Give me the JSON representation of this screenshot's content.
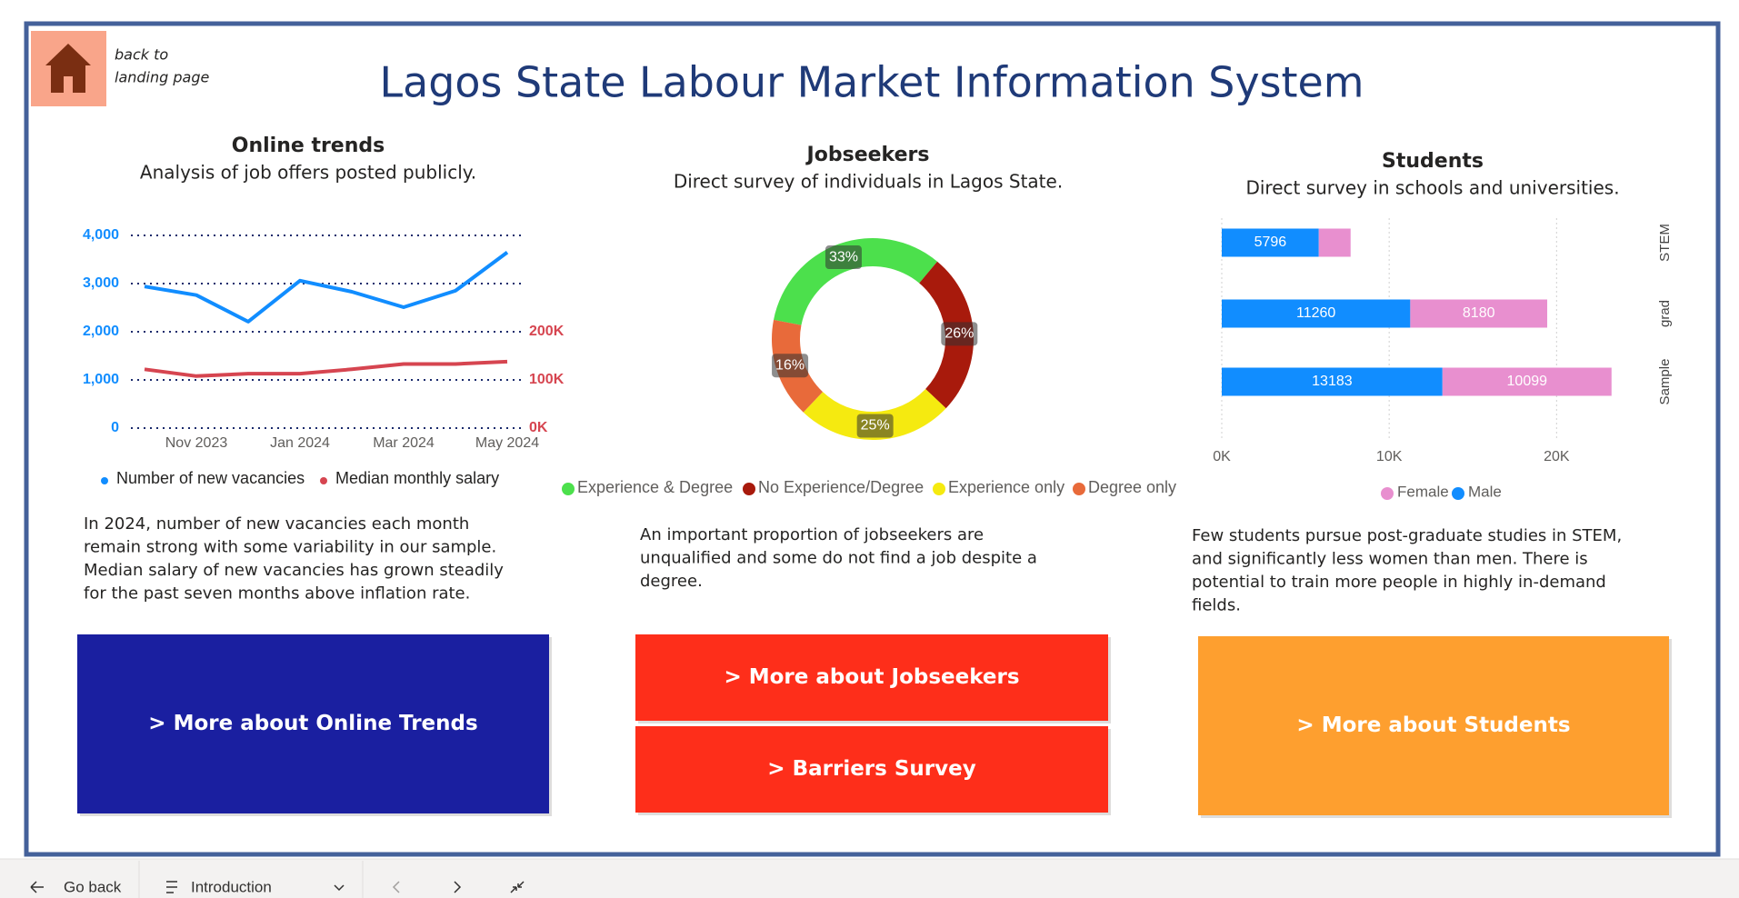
{
  "header": {
    "title": "Lagos State Labour Market Information System",
    "home_link": [
      "back to",
      "landing page"
    ]
  },
  "sections": [
    {
      "heading": "Online trends",
      "subheading": "Analysis of job offers posted publicly.",
      "text": [
        "In 2024, number of new vacancies each month",
        "remain strong with some variability in our sample.",
        "Median salary of new vacancies has grown steadily",
        "for the past seven months above inflation rate."
      ],
      "buttons": [
        "> More about Online Trends"
      ]
    },
    {
      "heading": "Jobseekers",
      "subheading": "Direct survey of individuals in Lagos State.",
      "text": [
        "An important proportion of jobseekers are",
        "unqualified and some do not find a job despite a",
        "degree."
      ],
      "buttons": [
        "> More about Jobseekers",
        "> Barriers Survey"
      ]
    },
    {
      "heading": "Students",
      "subheading": "Direct survey in schools and universities.",
      "text": [
        "Few students pursue post-graduate studies in STEM,",
        "and significantly less women than men. There is",
        "potential to train more people in highly in-demand",
        "fields."
      ],
      "buttons": [
        "> More about Students"
      ]
    }
  ],
  "chart_data": [
    {
      "type": "line",
      "categories": [
        null,
        "Nov 2023",
        null,
        "Jan 2024",
        null,
        "Mar 2024",
        null,
        "May 2024"
      ],
      "series": [
        {
          "name": "Number of new vacancies",
          "color": "#118dff",
          "values": [
            2940,
            2760,
            2210,
            3060,
            2830,
            2510,
            2850,
            3650
          ]
        },
        {
          "name": "Median monthly salary",
          "color": "#d64550",
          "axis": "y2",
          "values": [
            122000,
            108000,
            113000,
            113000,
            122000,
            133000,
            133000,
            138000
          ]
        }
      ],
      "ylim": [
        0,
        4000
      ],
      "yticks": [
        0,
        {
          "value": 1000,
          "label": "1,000"
        },
        {
          "value": 2000,
          "label": "2,000"
        },
        {
          "value": 3000,
          "label": "3,000"
        },
        {
          "value": 4000,
          "label": "4,000"
        }
      ],
      "y2lim": [
        0,
        400000
      ],
      "y2ticks": [
        {
          "value": 0,
          "label": "0K"
        },
        {
          "value": 100000,
          "label": "100K"
        },
        {
          "value": 200000,
          "label": "200K"
        }
      ],
      "grid": true
    },
    {
      "type": "pie",
      "donut": true,
      "categories": [
        "Experience & Degree",
        "No Experience/Degree",
        "Experience only",
        "Degree only"
      ],
      "values": [
        33,
        26,
        25,
        16
      ],
      "value_labels": [
        "33%",
        "26%",
        "25%",
        "16%"
      ],
      "colors": [
        "#4ce04c",
        "#a81a0c",
        "#f5ea10",
        "#e86a3a"
      ]
    },
    {
      "type": "bar",
      "orientation": "horizontal",
      "stacked": true,
      "categories": [
        "STEM",
        "grad",
        "Sample"
      ],
      "series": [
        {
          "name": "Male",
          "color": "#118dff",
          "values": [
            5796,
            11260,
            13183
          ]
        },
        {
          "name": "Female",
          "color": "#e88fcf",
          "values": [
            1900,
            8180,
            10099
          ]
        }
      ],
      "xlim": [
        0,
        24000
      ],
      "xticks": [
        {
          "value": 0,
          "label": "0K"
        },
        {
          "value": 10000,
          "label": "10K"
        },
        {
          "value": 20000,
          "label": "20K"
        }
      ],
      "grid": true
    }
  ],
  "footer": {
    "back": "Go back",
    "page": "Introduction"
  }
}
